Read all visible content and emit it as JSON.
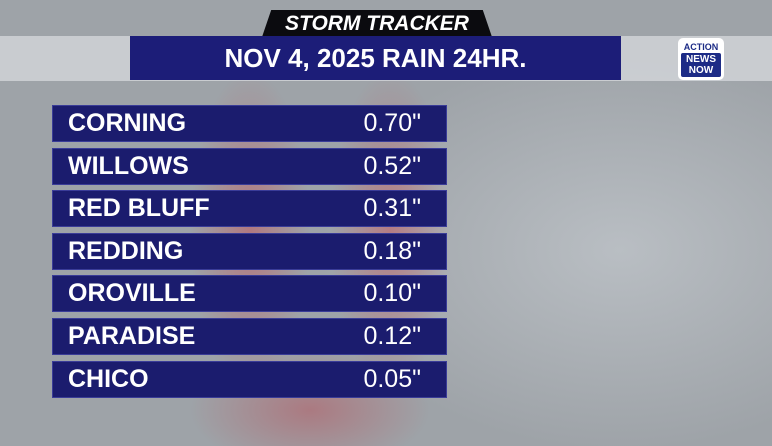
{
  "header": {
    "tag": "STORM TRACKER",
    "title": "NOV 4, 2025 RAIN 24HR."
  },
  "logo": {
    "line1": "ACTION",
    "line2": "NEWS",
    "line3": "NOW"
  },
  "table": {
    "rows": [
      [
        "CORNING",
        "0.70\""
      ],
      [
        "WILLOWS",
        "0.52\""
      ],
      [
        "RED BLUFF",
        "0.31\""
      ],
      [
        "REDDING",
        "0.18\""
      ],
      [
        "OROVILLE",
        "0.10\""
      ],
      [
        "PARADISE",
        "0.12\""
      ],
      [
        "CHICO",
        "0.05\""
      ]
    ]
  }
}
